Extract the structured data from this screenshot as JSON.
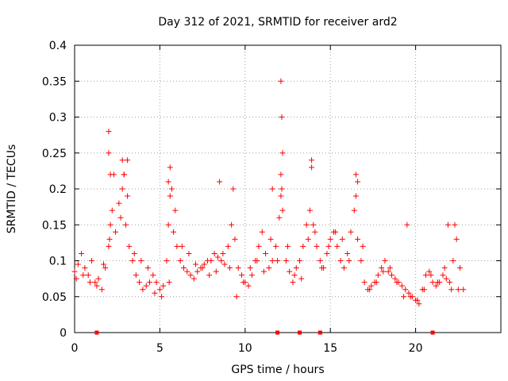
{
  "chart_data": {
    "type": "scatter",
    "title": "Day 312 of 2021, SRMTID for receiver ard2",
    "xlabel": "GPS time / hours",
    "ylabel": "SRMTID / TECUs",
    "xlim": [
      0,
      25
    ],
    "ylim": [
      0,
      0.4
    ],
    "xticks": [
      0,
      5,
      10,
      15,
      20
    ],
    "xtick_labels": [
      "0",
      "5",
      "10",
      "15",
      "20"
    ],
    "yticks": [
      0,
      0.05,
      0.1,
      0.15,
      0.2,
      0.25,
      0.3,
      0.35,
      0.4
    ],
    "ytick_labels": [
      "0",
      "0.05",
      "0.1",
      "0.15",
      "0.2",
      "0.25",
      "0.3",
      "0.35",
      "0.4"
    ],
    "grid": true,
    "marker": "plus",
    "color": "#ff0000",
    "series": [
      {
        "name": "SRMTID",
        "x": [
          0.0,
          0.2,
          0.4,
          0.6,
          0.8,
          1.0,
          1.2,
          1.4,
          1.6,
          1.8,
          2.0,
          2.1,
          2.2,
          2.4,
          2.6,
          2.8,
          2.9,
          3.0,
          3.2,
          3.4,
          3.6,
          3.8,
          4.0,
          4.2,
          4.4,
          4.6,
          4.8,
          5.0,
          5.2,
          5.4,
          5.5,
          5.6,
          5.7,
          5.8,
          6.0,
          6.2,
          6.4,
          6.6,
          6.8,
          7.0,
          7.2,
          7.4,
          7.6,
          7.8,
          8.0,
          8.2,
          8.4,
          8.6,
          8.8,
          9.0,
          9.2,
          9.4,
          9.6,
          9.8,
          10.0,
          10.2,
          10.4,
          10.6,
          10.8,
          11.0,
          11.2,
          11.4,
          11.6,
          11.8,
          12.0,
          12.1,
          12.2,
          12.4,
          12.6,
          12.8,
          13.0,
          13.2,
          13.4,
          13.6,
          13.8,
          14.0,
          14.2,
          14.4,
          14.6,
          14.8,
          15.0,
          15.2,
          15.4,
          15.6,
          15.8,
          16.0,
          16.2,
          16.4,
          16.6,
          16.8,
          17.0,
          17.2,
          17.4,
          17.6,
          17.8,
          18.0,
          18.2,
          18.4,
          18.6,
          18.8,
          19.0,
          19.2,
          19.4,
          19.6,
          19.8,
          20.0,
          20.2,
          20.4,
          20.6,
          20.8,
          21.0,
          21.2,
          21.4,
          21.6,
          21.8,
          22.0,
          22.2,
          22.4,
          22.6,
          22.8,
          0.1,
          0.5,
          0.9,
          1.3,
          1.7,
          2.05,
          2.3,
          2.7,
          3.1,
          3.5,
          3.9,
          4.3,
          4.7,
          5.1,
          5.55,
          5.9,
          6.3,
          6.7,
          7.1,
          7.5,
          7.9,
          8.3,
          8.7,
          9.1,
          9.5,
          9.9,
          10.3,
          10.7,
          11.1,
          11.5,
          11.9,
          12.15,
          12.5,
          12.9,
          13.3,
          13.7,
          14.1,
          14.5,
          14.9,
          15.3,
          15.7,
          16.1,
          16.5,
          16.9,
          17.3,
          17.7,
          18.1,
          18.5,
          18.9,
          19.3,
          19.7,
          20.1,
          20.5,
          20.9,
          21.3,
          21.7,
          22.1,
          22.5,
          2.0,
          2.0,
          2.1,
          2.8,
          2.9,
          3.1,
          5.5,
          5.6,
          8.5,
          9.3,
          11.6,
          12.1,
          12.1,
          12.15,
          12.2,
          13.9,
          13.9,
          16.5,
          16.6,
          19.5,
          21.9,
          22.3
        ],
        "y": [
          0.085,
          0.095,
          0.11,
          0.09,
          0.08,
          0.1,
          0.07,
          0.075,
          0.06,
          0.09,
          0.12,
          0.15,
          0.17,
          0.14,
          0.18,
          0.2,
          0.22,
          0.15,
          0.12,
          0.1,
          0.08,
          0.07,
          0.06,
          0.065,
          0.07,
          0.08,
          0.07,
          0.06,
          0.065,
          0.1,
          0.15,
          0.19,
          0.2,
          0.14,
          0.12,
          0.1,
          0.09,
          0.085,
          0.08,
          0.075,
          0.085,
          0.09,
          0.095,
          0.1,
          0.1,
          0.11,
          0.105,
          0.1,
          0.095,
          0.12,
          0.15,
          0.13,
          0.09,
          0.08,
          0.07,
          0.065,
          0.08,
          0.1,
          0.12,
          0.14,
          0.11,
          0.09,
          0.1,
          0.12,
          0.16,
          0.19,
          0.17,
          0.1,
          0.085,
          0.07,
          0.09,
          0.1,
          0.12,
          0.15,
          0.17,
          0.15,
          0.12,
          0.1,
          0.09,
          0.11,
          0.13,
          0.14,
          0.12,
          0.1,
          0.09,
          0.11,
          0.14,
          0.17,
          0.13,
          0.1,
          0.07,
          0.06,
          0.065,
          0.07,
          0.08,
          0.09,
          0.1,
          0.085,
          0.08,
          0.075,
          0.07,
          0.065,
          0.06,
          0.055,
          0.05,
          0.045,
          0.04,
          0.06,
          0.08,
          0.085,
          0.07,
          0.065,
          0.07,
          0.08,
          0.075,
          0.07,
          0.1,
          0.13,
          0.09,
          0.06,
          0.075,
          0.08,
          0.07,
          0.065,
          0.095,
          0.13,
          0.22,
          0.16,
          0.19,
          0.11,
          0.1,
          0.09,
          0.055,
          0.05,
          0.07,
          0.17,
          0.12,
          0.11,
          0.095,
          0.09,
          0.08,
          0.085,
          0.11,
          0.09,
          0.05,
          0.07,
          0.09,
          0.1,
          0.085,
          0.13,
          0.1,
          0.2,
          0.12,
          0.08,
          0.075,
          0.13,
          0.14,
          0.09,
          0.12,
          0.14,
          0.13,
          0.1,
          0.19,
          0.12,
          0.06,
          0.07,
          0.085,
          0.09,
          0.07,
          0.05,
          0.05,
          0.045,
          0.06,
          0.08,
          0.07,
          0.09,
          0.06,
          0.06,
          0.28,
          0.25,
          0.22,
          0.24,
          0.22,
          0.24,
          0.21,
          0.23,
          0.21,
          0.2,
          0.2,
          0.22,
          0.35,
          0.3,
          0.25,
          0.24,
          0.23,
          0.22,
          0.21,
          0.15,
          0.15,
          0.15
        ]
      }
    ],
    "baseline_marks": [
      1.3,
      11.9,
      13.2,
      14.4,
      21.0
    ]
  }
}
